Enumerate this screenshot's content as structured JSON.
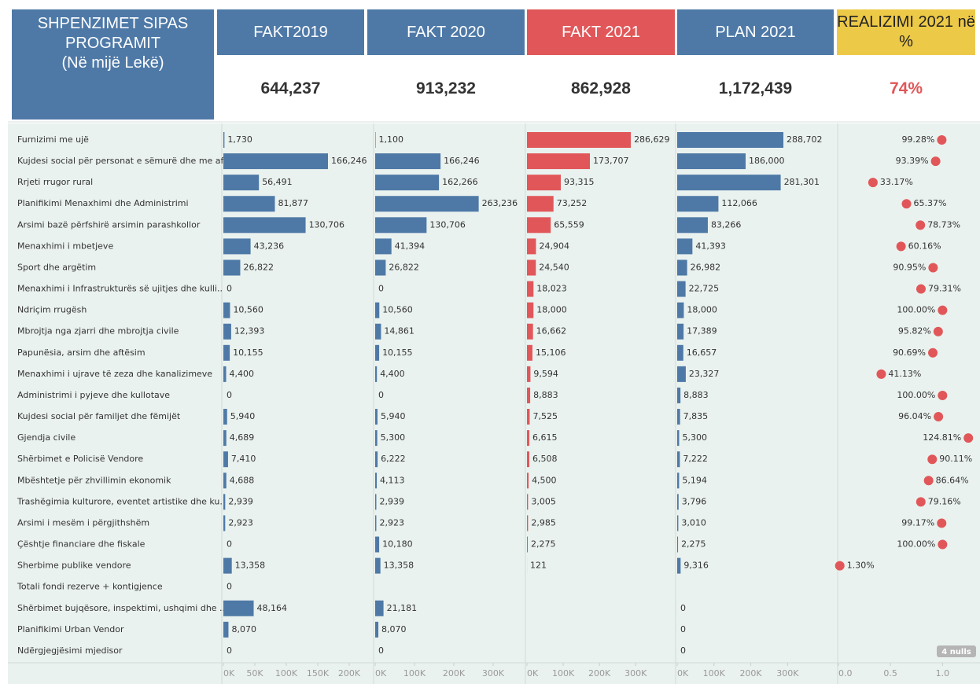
{
  "header": {
    "title": "SHPENZIMET SIPAS PROGRAMIT",
    "subtitle": "(Në mijë Lekë)"
  },
  "kpis": [
    {
      "label": "FAKT2019",
      "value": "644,237"
    },
    {
      "label": "FAKT 2020",
      "value": "913,232"
    },
    {
      "label": "FAKT 2021",
      "value": "862,928"
    },
    {
      "label": "PLAN 2021",
      "value": "1,172,439"
    },
    {
      "label": "REALIZIMI 2021 në %",
      "value": "74%"
    }
  ],
  "nulls_indicator": "4 nulls",
  "chart_data": [
    {
      "type": "bar",
      "color": "#4e79a7",
      "categories": [
        "Furnizimi me ujë",
        "Kujdesi social për personat e sëmurë dhe me aft..",
        "Rrjeti rrugor rural",
        "Planifikimi Menaxhimi dhe Administrimi",
        "Arsimi bazë përfshirë arsimin parashkollor",
        "Menaxhimi i mbetjeve",
        "Sport dhe argëtim",
        "Menaxhimi i Infrastrukturës së ujitjes dhe kulli..",
        "Ndriçim rrugësh",
        "Mbrojtja nga zjarri dhe mbrojtja civile",
        "Papunësia, arsim dhe aftësim",
        "Menaxhimi i ujrave të zeza dhe kanalizimeve",
        "Administrimi i pyjeve dhe kullotave",
        "Kujdesi social për familjet dhe fëmijët",
        "Gjendja civile",
        "Shërbimet e Policisë Vendore",
        "Mbështetje për zhvillimin ekonomik",
        "Trashëgimia kulturore, eventet artistike dhe ku..",
        "Arsimi i mesëm i përgjithshëm",
        "Çështje financiare dhe fiskale",
        "Sherbime publike vendore",
        "Totali fondi rezerve + kontigjence",
        "Shërbimet bujqësore, inspektimi, ushqimi dhe ..",
        "Planifikimi Urban Vendor",
        "Ndërgjegjësimi mjedisor"
      ],
      "values": [
        1730,
        166246,
        56491,
        81877,
        130706,
        43236,
        26822,
        0,
        10560,
        12393,
        10155,
        4400,
        0,
        5940,
        4689,
        7410,
        4688,
        2939,
        2923,
        0,
        13358,
        0,
        48164,
        8070,
        0
      ],
      "value_labels": [
        "1,730",
        "166,246",
        "56,491",
        "81,877",
        "130,706",
        "43,236",
        "26,822",
        "0",
        "10,560",
        "12,393",
        "10,155",
        "4,400",
        "0",
        "5,940",
        "4,689",
        "7,410",
        "4,688",
        "2,939",
        "2,923",
        "0",
        "13,358",
        "0",
        "48,164",
        "8,070",
        "0"
      ],
      "xlim": [
        0,
        237500
      ],
      "xticks": [
        {
          "value": 0,
          "label": "0K"
        },
        {
          "value": 50000,
          "label": "50K"
        },
        {
          "value": 100000,
          "label": "100K"
        },
        {
          "value": 150000,
          "label": "150K"
        },
        {
          "value": 200000,
          "label": "200K"
        }
      ]
    },
    {
      "type": "bar",
      "color": "#4e79a7",
      "values": [
        1100,
        166246,
        162266,
        263236,
        130706,
        41394,
        26822,
        0,
        10560,
        14861,
        10155,
        4400,
        0,
        5940,
        5300,
        6222,
        4113,
        2939,
        2923,
        10180,
        13358,
        null,
        21181,
        8070,
        0
      ],
      "value_labels": [
        "1,100",
        "166,246",
        "162,266",
        "263,236",
        "130,706",
        "41,394",
        "26,822",
        "0",
        "10,560",
        "14,861",
        "10,155",
        "4,400",
        "0",
        "5,940",
        "5,300",
        "6,222",
        "4,113",
        "2,939",
        "2,923",
        "10,180",
        "13,358",
        null,
        "21,181",
        "8,070",
        "0"
      ],
      "xlim": [
        0,
        378000
      ],
      "xticks": [
        {
          "value": 0,
          "label": "0K"
        },
        {
          "value": 100000,
          "label": "100K"
        },
        {
          "value": 200000,
          "label": "200K"
        },
        {
          "value": 300000,
          "label": "300K"
        }
      ]
    },
    {
      "type": "bar",
      "color": "#e15759",
      "values": [
        286629,
        173707,
        93315,
        73252,
        65559,
        24904,
        24540,
        18023,
        18000,
        16662,
        15106,
        9594,
        8883,
        7525,
        6615,
        6508,
        4500,
        3005,
        2985,
        2275,
        121,
        null,
        null,
        null,
        null
      ],
      "value_labels": [
        "286,629",
        "173,707",
        "93,315",
        "73,252",
        "65,559",
        "24,904",
        "24,540",
        "18,023",
        "18,000",
        "16,662",
        "15,106",
        "9,594",
        "8,883",
        "7,525",
        "6,615",
        "6,508",
        "4,500",
        "3,005",
        "2,985",
        "2,275",
        "121",
        null,
        null,
        null,
        null
      ],
      "xlim": [
        0,
        408000
      ],
      "xticks": [
        {
          "value": 0,
          "label": "0K"
        },
        {
          "value": 100000,
          "label": "100K"
        },
        {
          "value": 200000,
          "label": "200K"
        },
        {
          "value": 300000,
          "label": "300K"
        }
      ]
    },
    {
      "type": "bar",
      "color": "#4e79a7",
      "values": [
        288702,
        186000,
        281301,
        112066,
        83266,
        41393,
        26982,
        22725,
        18000,
        17389,
        16657,
        23327,
        8883,
        7835,
        5300,
        7222,
        5194,
        3796,
        3010,
        2275,
        9316,
        null,
        0,
        0,
        0
      ],
      "value_labels": [
        "288,702",
        "186,000",
        "281,301",
        "112,066",
        "83,266",
        "41,393",
        "26,982",
        "22,725",
        "18,000",
        "17,389",
        "16,657",
        "23,327",
        "8,883",
        "7,835",
        "5,300",
        "7,222",
        "5,194",
        "3,796",
        "3,010",
        "2,275",
        "9,316",
        null,
        "0",
        "0",
        "0"
      ],
      "xlim": [
        0,
        434000
      ],
      "xticks": [
        {
          "value": 0,
          "label": "0K"
        },
        {
          "value": 100000,
          "label": "100K"
        },
        {
          "value": 200000,
          "label": "200K"
        },
        {
          "value": 300000,
          "label": "300K"
        }
      ]
    },
    {
      "type": "dot",
      "color": "#e15759",
      "values": [
        0.9928,
        0.9339,
        0.3317,
        0.6537,
        0.7873,
        0.6016,
        0.9095,
        0.7931,
        1.0,
        0.9582,
        0.9069,
        0.4113,
        1.0,
        0.9604,
        1.2481,
        0.9011,
        0.8664,
        0.7916,
        0.9917,
        1.0,
        0.013,
        null,
        null,
        null,
        null
      ],
      "value_labels": [
        "99.28%",
        "93.39%",
        "33.17%",
        "65.37%",
        "78.73%",
        "60.16%",
        "90.95%",
        "79.31%",
        "100.00%",
        "95.82%",
        "90.69%",
        "41.13%",
        "100.00%",
        "96.04%",
        "124.81%",
        "90.11%",
        "86.64%",
        "79.16%",
        "99.17%",
        "100.00%",
        "1.30%",
        null,
        null,
        null,
        null
      ],
      "xlim": [
        0,
        1.36
      ],
      "xticks": [
        {
          "value": 0,
          "label": "0.0"
        },
        0.5,
        {
          "value": 1,
          "label": "1.0"
        }
      ]
    }
  ]
}
